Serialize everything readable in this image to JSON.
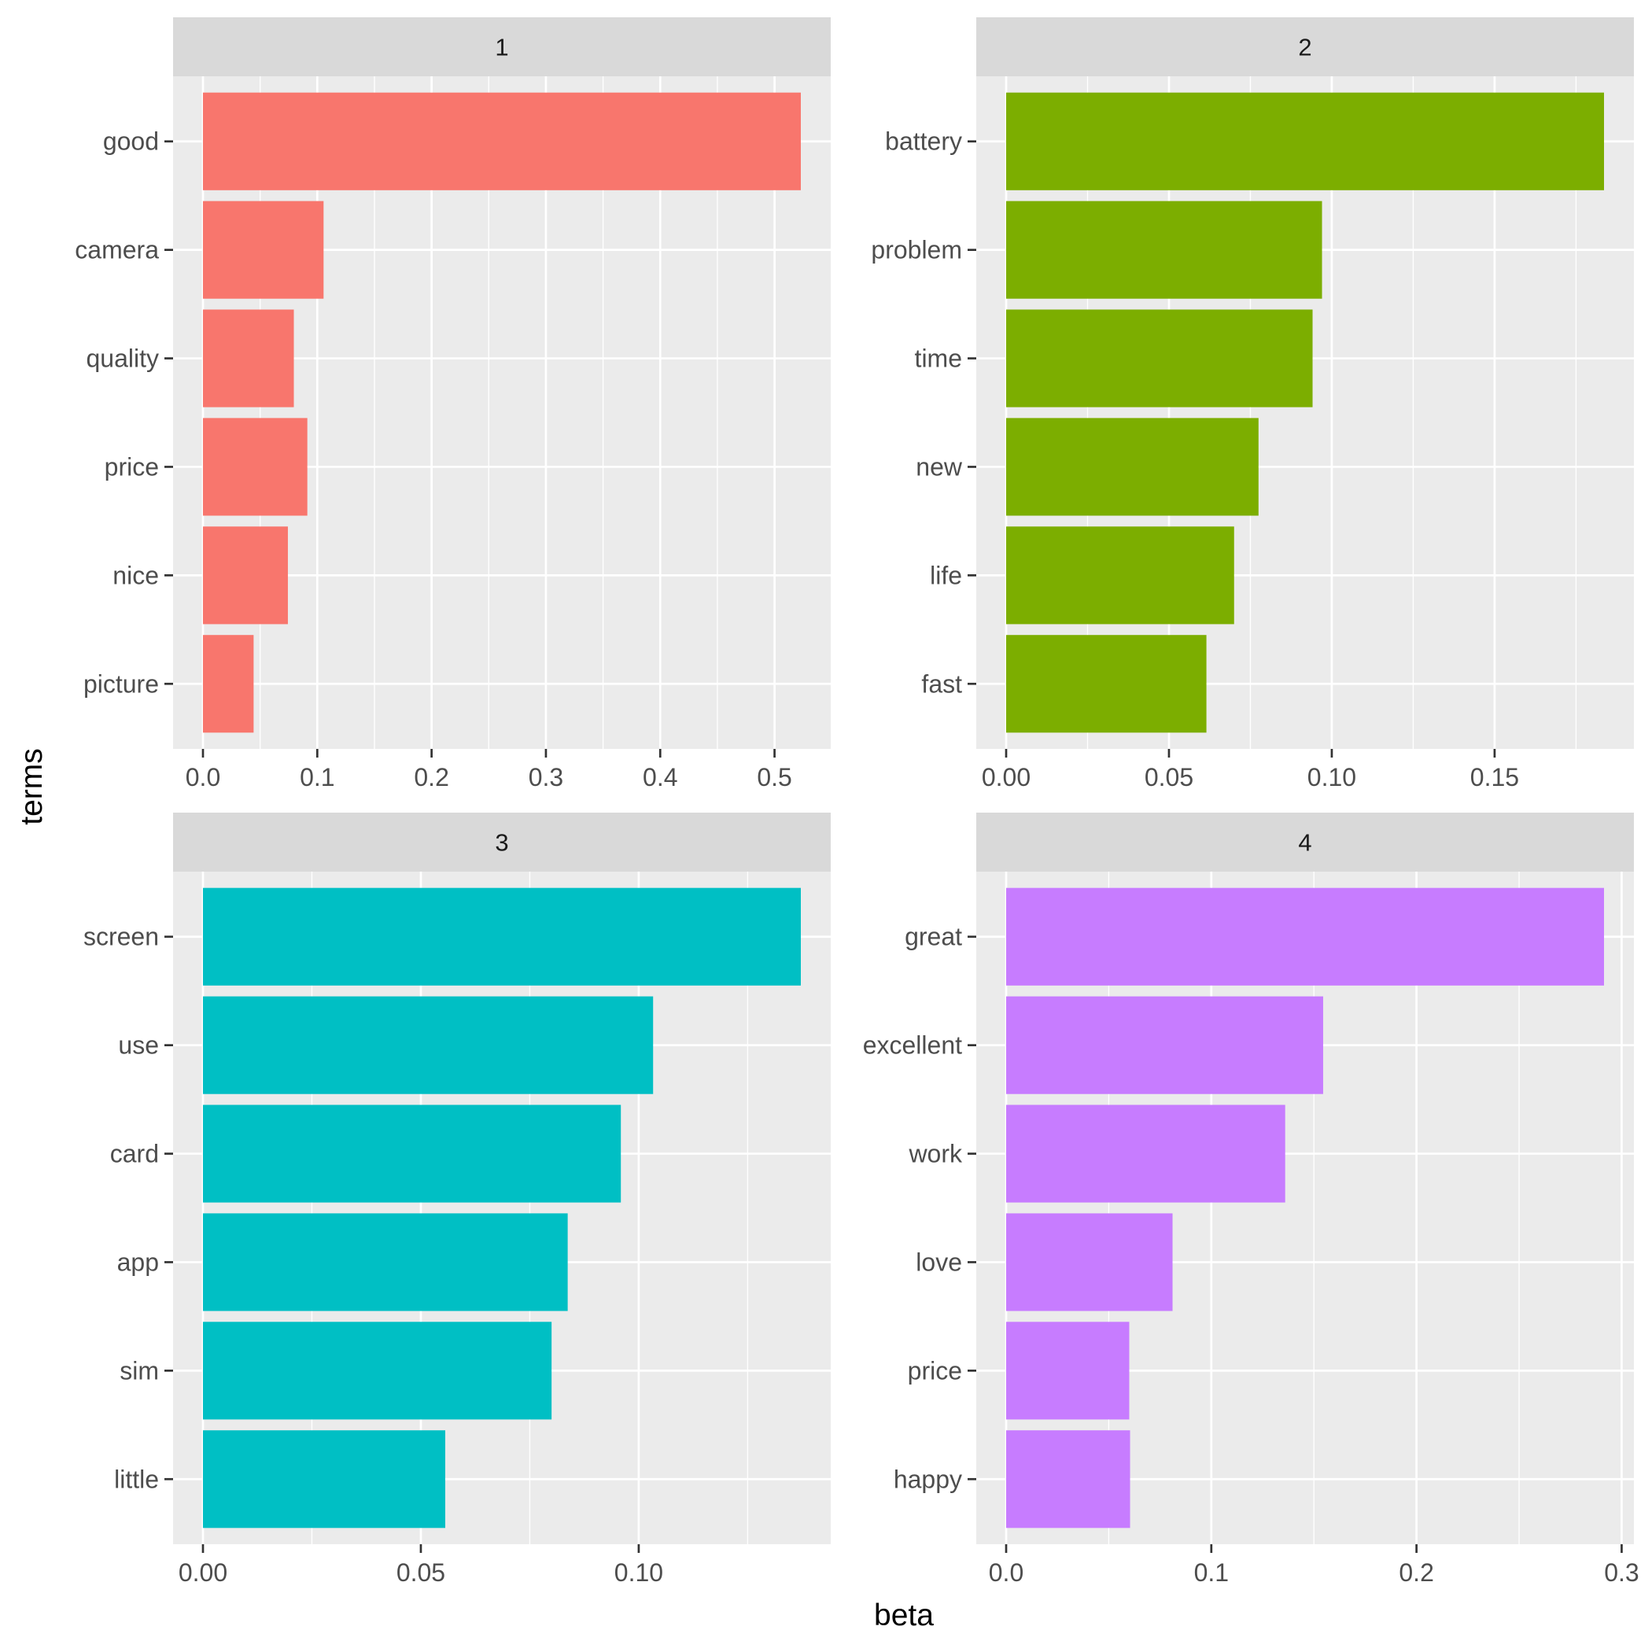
{
  "chart_data": {
    "type": "bar",
    "orientation": "horizontal",
    "layout": "facet_wrap 2x2, free scales",
    "xlabel": "beta",
    "ylabel": "terms",
    "grid": true,
    "panels": [
      {
        "strip": "1",
        "color": "#F8766D",
        "categories": [
          "good",
          "camera",
          "quality",
          "price",
          "nice",
          "picture"
        ],
        "values": [
          0.523,
          0.1055,
          0.0795,
          0.0913,
          0.0743,
          0.0443
        ],
        "xticks": [
          0.0,
          0.1,
          0.2,
          0.3,
          0.4,
          0.5
        ],
        "xtick_labels": [
          "0.0",
          "0.1",
          "0.2",
          "0.3",
          "0.4",
          "0.5"
        ]
      },
      {
        "strip": "2",
        "color": "#7CAE00",
        "categories": [
          "battery",
          "problem",
          "time",
          "new",
          "life",
          "fast"
        ],
        "values": [
          0.1836,
          0.097,
          0.0941,
          0.0775,
          0.07,
          0.0615
        ],
        "xticks": [
          0.0,
          0.05,
          0.1,
          0.15
        ],
        "xtick_labels": [
          "0.00",
          "0.05",
          "0.10",
          "0.15"
        ]
      },
      {
        "strip": "3",
        "color": "#00BFC4",
        "categories": [
          "screen",
          "use",
          "card",
          "app",
          "sim",
          "little"
        ],
        "values": [
          0.1372,
          0.1033,
          0.0959,
          0.0837,
          0.08,
          0.0556
        ],
        "xticks": [
          0.0,
          0.05,
          0.1
        ],
        "xtick_labels": [
          "0.00",
          "0.05",
          "0.10"
        ]
      },
      {
        "strip": "4",
        "color": "#C77CFF",
        "categories": [
          "great",
          "excellent",
          "work",
          "love",
          "price",
          "happy"
        ],
        "values": [
          0.2914,
          0.1545,
          0.136,
          0.0811,
          0.06,
          0.0604
        ],
        "xticks": [
          0.0,
          0.1,
          0.2,
          0.3
        ],
        "xtick_labels": [
          "0.0",
          "0.1",
          "0.2",
          "0.3"
        ]
      }
    ]
  }
}
